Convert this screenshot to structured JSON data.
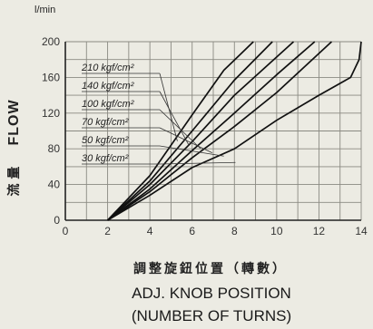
{
  "chart_data": {
    "type": "line",
    "unit_label": "l/min",
    "ylabel": "FLOW",
    "ylabel_cjk": "流 量",
    "xlabel_cjk": "調整旋鈕位置（轉數）",
    "xlabel_line1": "ADJ. KNOB POSITION",
    "xlabel_line2": "(NUMBER OF TURNS)",
    "xlim": [
      0,
      14
    ],
    "ylim": [
      0,
      200
    ],
    "x_ticks": [
      "0",
      "2",
      "4",
      "6",
      "8",
      "10",
      "12",
      "14"
    ],
    "y_ticks": [
      "0",
      "40",
      "80",
      "120",
      "160",
      "200"
    ],
    "grid": true,
    "series": [
      {
        "name": "210 kgf/cm²",
        "x": [
          2,
          4,
          6,
          7.5,
          8.9
        ],
        "y": [
          0,
          50,
          118,
          168,
          200
        ]
      },
      {
        "name": "140 kgf/cm²",
        "x": [
          2,
          4,
          6,
          8,
          9.8
        ],
        "y": [
          0,
          44,
          100,
          157,
          200
        ]
      },
      {
        "name": "100 kgf/cm²",
        "x": [
          2,
          4,
          6,
          8,
          10.8
        ],
        "y": [
          0,
          40,
          88,
          140,
          200
        ]
      },
      {
        "name": "70 kgf/cm²",
        "x": [
          2,
          4,
          6,
          8,
          10,
          11.8
        ],
        "y": [
          0,
          35,
          78,
          120,
          163,
          200
        ]
      },
      {
        "name": "50 kgf/cm²",
        "x": [
          2,
          4,
          6,
          8,
          10,
          12.6
        ],
        "y": [
          0,
          32,
          70,
          105,
          143,
          200
        ]
      },
      {
        "name": "30 kgf/cm²",
        "x": [
          2,
          4,
          6,
          8,
          10,
          12,
          13.5,
          13.9,
          14
        ],
        "y": [
          0,
          28,
          59,
          80,
          112,
          140,
          160,
          180,
          200
        ]
      }
    ]
  }
}
